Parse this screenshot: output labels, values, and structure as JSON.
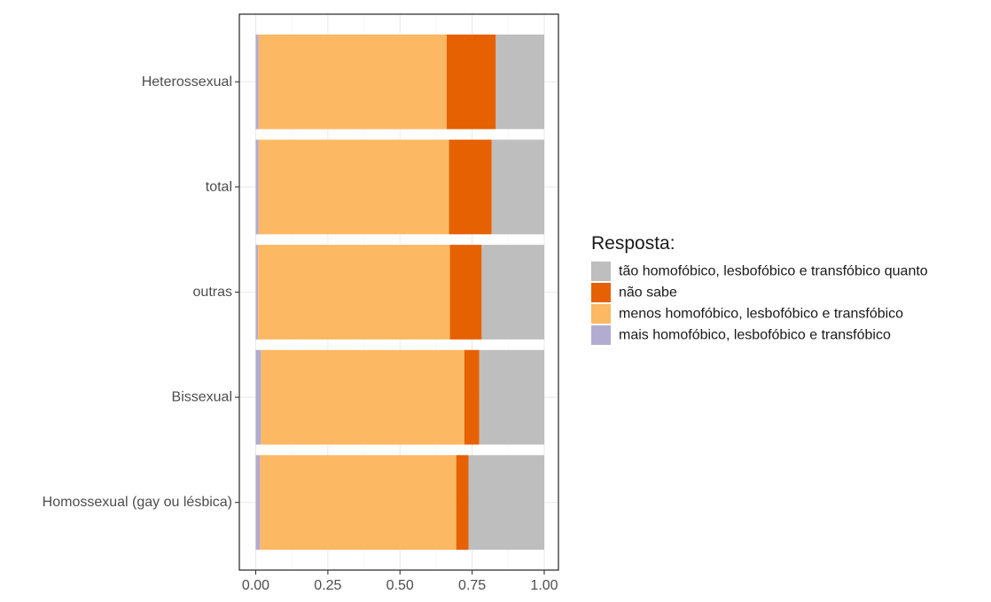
{
  "chart_data": {
    "type": "bar",
    "orientation": "horizontal",
    "stacked": true,
    "categories": [
      "Homossexual (gay ou lésbica)",
      "Bissexual",
      "outras",
      "total",
      "Heterossexual"
    ],
    "series": [
      {
        "name": "mais homofóbico, lesbofóbico e transfóbico",
        "color": "#b2abd2",
        "values": [
          0.015,
          0.018,
          0.008,
          0.01,
          0.01
        ]
      },
      {
        "name": "menos homofóbico, lesbofóbico e transfóbico",
        "color": "#fdb863",
        "values": [
          0.68,
          0.705,
          0.665,
          0.66,
          0.652
        ]
      },
      {
        "name": "não sabe",
        "color": "#e66101",
        "values": [
          0.043,
          0.052,
          0.11,
          0.148,
          0.17
        ]
      },
      {
        "name": "tão homofóbico, lesbofóbico e transfóbico quanto",
        "color": "#bebebe",
        "values": [
          0.262,
          0.225,
          0.217,
          0.182,
          0.168
        ]
      }
    ],
    "xlim": [
      0,
      1
    ],
    "x_ticks": [
      "0.00",
      "0.25",
      "0.50",
      "0.75",
      "1.00"
    ],
    "x_tick_values": [
      0,
      0.25,
      0.5,
      0.75,
      1.0
    ],
    "xlabel": "",
    "ylabel": "",
    "grid": true,
    "legend": {
      "title": "Resposta:",
      "position": "right",
      "order": [
        3,
        2,
        1,
        0
      ]
    }
  }
}
